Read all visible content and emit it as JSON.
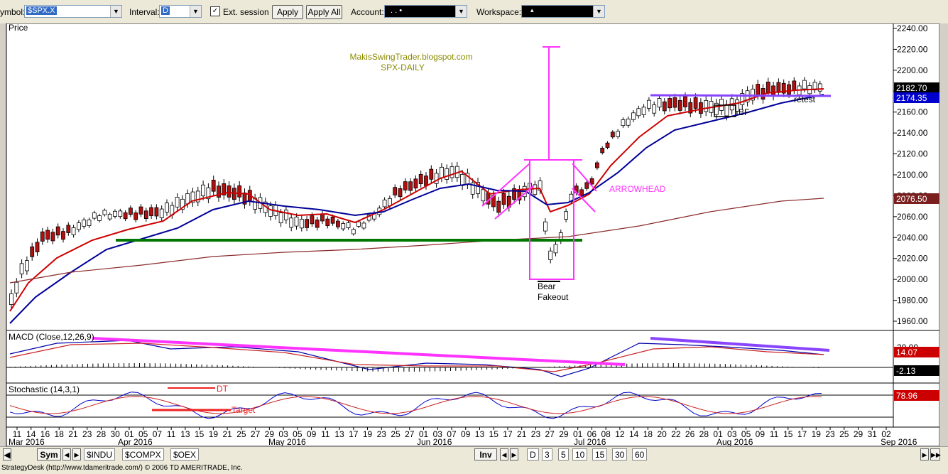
{
  "toolbar": {
    "symbol_label": "ymbol:",
    "symbol_value": "$SPX.X",
    "interval_label": "Interval:",
    "interval_value": "D",
    "ext_session_label": "Ext. session",
    "ext_session_checked": true,
    "apply_label": "Apply",
    "apply_all_label": "Apply All",
    "account_label": "Account:",
    "account_value": ".   .      •",
    "workspace_label": "Workspace:",
    "workspace_value": "▴"
  },
  "price_panel": {
    "title": "Price",
    "watermark_line1": "MakisSwingTrader.blogspot.com",
    "watermark_line2": "SPX-DAILY",
    "annotation_arrowhead": "ARROWHEAD",
    "annotation_bear": "Bear",
    "annotation_fakeout": "Fakeout",
    "annotation_bf": "BF",
    "annotation_retest": "retest",
    "y_ticks": [
      "2240.00",
      "2220.00",
      "2200.00",
      "2180.00",
      "2160.00",
      "2140.00",
      "2120.00",
      "2100.00",
      "2080.00",
      "2060.00",
      "2040.00",
      "2020.00",
      "2000.00",
      "1980.00",
      "1960.00"
    ],
    "price_tag_last": "2182.70",
    "price_tag_ma_blue": "2174.35",
    "price_tag_ma_brown": "2076.50"
  },
  "macd_panel": {
    "title": "MACD (Close,12,26,9)",
    "y_tick": "20.00",
    "tag_value": "14.07",
    "tag_diff": "-2.13"
  },
  "stoch_panel": {
    "title": "Stochastic (14,3,1)",
    "annotation_dt": "DT",
    "annotation_target": "Target",
    "tag_value": "78.96"
  },
  "x_axis": {
    "day_labels": [
      "11",
      "14",
      "16",
      "18",
      "21",
      "23",
      "28",
      "30",
      "01",
      "05",
      "07",
      "11",
      "13",
      "15",
      "19",
      "21",
      "25",
      "27",
      "29",
      "03",
      "05",
      "09",
      "11",
      "13",
      "17",
      "19",
      "23",
      "25",
      "27",
      "01",
      "03",
      "07",
      "09",
      "13",
      "15",
      "17",
      "21",
      "23",
      "27",
      "29",
      "01",
      "06",
      "08",
      "12",
      "14",
      "18",
      "20",
      "22",
      "26",
      "28",
      "01",
      "03",
      "05",
      "09",
      "11",
      "15",
      "17",
      "19",
      "23",
      "25",
      "29",
      "31",
      "02"
    ],
    "month_labels": [
      {
        "label": "Mar 2016"
      },
      {
        "label": "Apr 2016"
      },
      {
        "label": "May 2016"
      },
      {
        "label": "Jun 2016"
      },
      {
        "label": "Jul 2016"
      },
      {
        "label": "Aug 2016"
      },
      {
        "label": "Sep 2016"
      }
    ]
  },
  "bottom_bar": {
    "sym_label": "Sym",
    "tabs": [
      "$INDU",
      "$COMPX",
      "$OEX"
    ],
    "inv_label": "Inv",
    "intervals": [
      "D",
      "3",
      "5",
      "10",
      "15",
      "30",
      "60"
    ]
  },
  "status": {
    "text": "StrategyDesk (http://www.tdameritrade.com/) © 2006 TD AMERITRADE, Inc."
  },
  "colors": {
    "ema_fast": "#cc0000",
    "ema_slow": "#000099",
    "sma_long": "#8b2a2a",
    "support_line": "#007700",
    "annotation": "#ff33ff",
    "trendline": "#8844ff",
    "watermark": "#8b8b00"
  }
}
